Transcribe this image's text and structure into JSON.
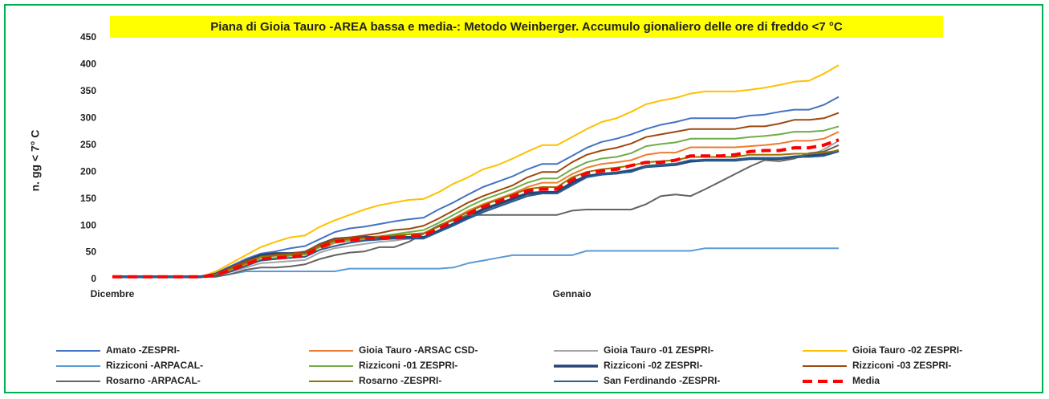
{
  "chart_data": {
    "type": "line",
    "title": "Piana di Gioia Tauro -AREA bassa e media-: Metodo Weinberger. Accumulo gionaliero delle ore di freddo  <7 °C",
    "y_label": "n. gg < 7° C",
    "categories": [
      "Dicembre",
      null,
      null,
      null,
      null,
      null,
      null,
      null,
      null,
      null,
      null,
      null,
      null,
      null,
      null,
      null,
      null,
      null,
      null,
      null,
      null,
      null,
      null,
      null,
      null,
      null,
      null,
      null,
      null,
      null,
      null,
      "Gennaio",
      null,
      null,
      null,
      null,
      null,
      null,
      null,
      null,
      null,
      null,
      null,
      null,
      null,
      null,
      null,
      null,
      null,
      null
    ],
    "ylim": [
      0,
      450
    ],
    "yticks": [
      0,
      50,
      100,
      150,
      200,
      250,
      300,
      350,
      400,
      450
    ],
    "grid": false,
    "legend": "bottom",
    "series": [
      {
        "name": "Amato -ZESPRI-",
        "color": "#4472c4",
        "values": [
          5,
          5,
          5,
          5,
          5,
          5,
          5,
          12,
          25,
          38,
          48,
          52,
          58,
          62,
          75,
          88,
          95,
          98,
          103,
          108,
          112,
          115,
          130,
          143,
          158,
          172,
          182,
          192,
          205,
          215,
          215,
          230,
          245,
          256,
          262,
          270,
          280,
          288,
          293,
          300,
          300,
          300,
          300,
          305,
          307,
          312,
          316,
          316,
          325,
          340
        ]
      },
      {
        "name": "Gioia Tauro -ARSAC CSD-",
        "color": "#ed7d31",
        "values": [
          5,
          5,
          5,
          5,
          5,
          5,
          5,
          8,
          18,
          28,
          35,
          38,
          40,
          42,
          55,
          68,
          72,
          74,
          78,
          80,
          84,
          86,
          100,
          113,
          128,
          140,
          150,
          160,
          172,
          180,
          180,
          196,
          208,
          215,
          218,
          222,
          232,
          236,
          236,
          246,
          246,
          246,
          246,
          248,
          250,
          253,
          258,
          258,
          262,
          275
        ]
      },
      {
        "name": "Gioia Tauro -01 ZESPRI-",
        "color": "#a5a5a5",
        "values": [
          5,
          5,
          5,
          5,
          5,
          5,
          5,
          6,
          14,
          22,
          30,
          32,
          34,
          36,
          50,
          58,
          62,
          66,
          70,
          72,
          76,
          78,
          90,
          102,
          115,
          126,
          136,
          146,
          156,
          160,
          160,
          176,
          190,
          196,
          200,
          204,
          212,
          214,
          216,
          222,
          222,
          222,
          222,
          226,
          226,
          226,
          228,
          230,
          242,
          258
        ]
      },
      {
        "name": "Gioia Tauro -02 ZESPRI-",
        "color": "#ffc000",
        "values": [
          5,
          5,
          5,
          5,
          5,
          5,
          5,
          15,
          30,
          45,
          60,
          70,
          78,
          82,
          98,
          110,
          120,
          130,
          138,
          143,
          148,
          150,
          162,
          178,
          190,
          205,
          213,
          225,
          238,
          250,
          250,
          265,
          280,
          293,
          300,
          312,
          326,
          333,
          338,
          346,
          350,
          350,
          350,
          353,
          357,
          362,
          368,
          370,
          383,
          399
        ]
      },
      {
        "name": "Rizziconi -ARPACAL-",
        "color": "#5b9bd5",
        "values": [
          5,
          5,
          5,
          5,
          5,
          5,
          5,
          5,
          10,
          15,
          15,
          15,
          15,
          15,
          15,
          15,
          20,
          20,
          20,
          20,
          20,
          20,
          20,
          22,
          30,
          35,
          40,
          45,
          45,
          45,
          45,
          45,
          53,
          53,
          53,
          53,
          53,
          53,
          53,
          53,
          58,
          58,
          58,
          58,
          58,
          58,
          58,
          58,
          58,
          58
        ]
      },
      {
        "name": "Rizziconi -01 ZESPRI-",
        "color": "#70ad47",
        "values": [
          5,
          5,
          5,
          5,
          5,
          5,
          5,
          9,
          20,
          30,
          38,
          40,
          44,
          46,
          60,
          70,
          74,
          78,
          80,
          84,
          88,
          92,
          105,
          120,
          135,
          148,
          158,
          168,
          180,
          188,
          188,
          205,
          218,
          225,
          228,
          235,
          248,
          252,
          255,
          262,
          262,
          262,
          262,
          265,
          267,
          270,
          275,
          275,
          277,
          285
        ]
      },
      {
        "name": "Rizziconi -02 ZESPRI-",
        "color": "#264478",
        "width": 3.5,
        "values": [
          5,
          5,
          5,
          5,
          5,
          5,
          5,
          10,
          22,
          34,
          45,
          48,
          48,
          50,
          65,
          75,
          77,
          78,
          78,
          78,
          78,
          78,
          90,
          103,
          117,
          130,
          140,
          150,
          160,
          162,
          162,
          180,
          192,
          196,
          198,
          202,
          210,
          212,
          214,
          220,
          222,
          222,
          222,
          225,
          225,
          225,
          228,
          230,
          232,
          240
        ]
      },
      {
        "name": "Rizziconi -03 ZESPRI-",
        "color": "#9e480e",
        "values": [
          5,
          5,
          5,
          5,
          5,
          5,
          5,
          10,
          22,
          34,
          42,
          46,
          48,
          52,
          65,
          75,
          78,
          82,
          86,
          92,
          94,
          100,
          113,
          128,
          143,
          155,
          165,
          175,
          190,
          200,
          200,
          218,
          232,
          240,
          245,
          253,
          265,
          270,
          275,
          280,
          280,
          280,
          280,
          285,
          285,
          290,
          297,
          297,
          300,
          310
        ]
      },
      {
        "name": "Rosarno -ARPACAL-",
        "color": "#636363",
        "values": [
          5,
          5,
          5,
          5,
          5,
          5,
          5,
          5,
          10,
          18,
          22,
          22,
          24,
          28,
          38,
          45,
          50,
          52,
          60,
          60,
          70,
          85,
          100,
          110,
          120,
          120,
          120,
          120,
          120,
          120,
          120,
          128,
          130,
          130,
          130,
          130,
          140,
          155,
          158,
          155,
          168,
          182,
          196,
          210,
          222,
          220,
          225,
          235,
          238,
          250
        ]
      },
      {
        "name": "Rosarno -ZESPRI-",
        "color": "#997300",
        "values": [
          5,
          5,
          5,
          5,
          5,
          5,
          5,
          9,
          20,
          30,
          42,
          44,
          46,
          48,
          62,
          72,
          75,
          77,
          80,
          82,
          84,
          86,
          98,
          112,
          125,
          138,
          148,
          158,
          168,
          172,
          172,
          190,
          200,
          205,
          208,
          212,
          218,
          220,
          222,
          228,
          228,
          228,
          228,
          232,
          232,
          232,
          234,
          234,
          236,
          240
        ]
      },
      {
        "name": "San Ferdinando -ZESPRI-",
        "color": "#255e91",
        "values": [
          5,
          5,
          5,
          5,
          5,
          5,
          5,
          7,
          15,
          25,
          35,
          38,
          40,
          42,
          55,
          62,
          68,
          72,
          74,
          76,
          76,
          76,
          88,
          100,
          113,
          125,
          135,
          145,
          155,
          160,
          160,
          175,
          190,
          195,
          198,
          200,
          210,
          212,
          215,
          222,
          222,
          222,
          222,
          226,
          226,
          226,
          228,
          228,
          230,
          238
        ]
      },
      {
        "name": "Media",
        "color": "#ff0000",
        "width": 4,
        "dashed": true,
        "values": [
          5,
          5,
          5,
          5,
          5,
          5,
          5,
          8,
          18,
          28,
          38,
          40,
          42,
          45,
          60,
          70,
          73,
          76,
          77,
          78,
          80,
          82,
          95,
          108,
          122,
          135,
          145,
          155,
          165,
          168,
          168,
          185,
          198,
          202,
          205,
          212,
          218,
          218,
          222,
          230,
          230,
          230,
          232,
          238,
          240,
          240,
          245,
          245,
          250,
          260
        ]
      }
    ]
  }
}
